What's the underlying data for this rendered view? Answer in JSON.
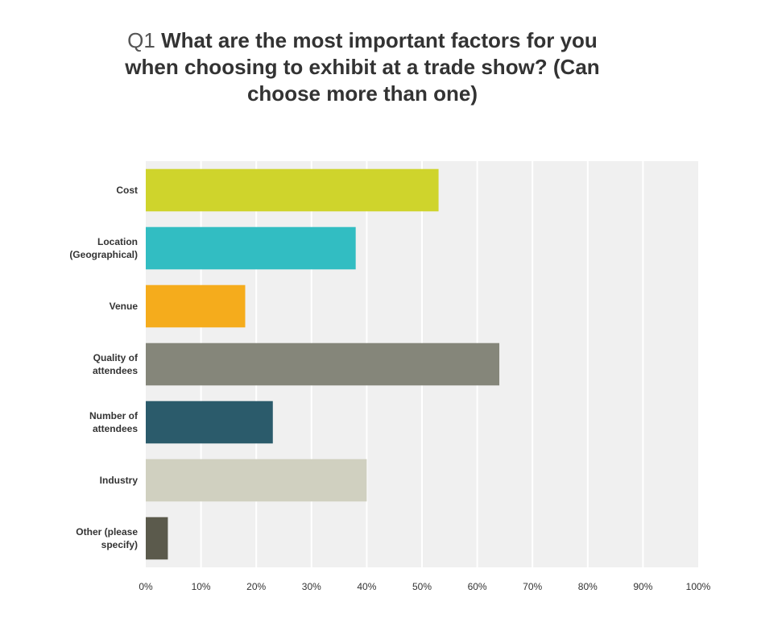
{
  "chart_data": {
    "type": "bar",
    "orientation": "horizontal",
    "title_prefix": "Q1",
    "title": "What are the most important factors for you when choosing to exhibit at a trade show? (Can choose more than one)",
    "categories": [
      [
        "Cost"
      ],
      [
        "Location",
        "(Geographical)"
      ],
      [
        "Venue"
      ],
      [
        "Quality of",
        "attendees"
      ],
      [
        "Number of",
        "attendees"
      ],
      [
        "Industry"
      ],
      [
        "Other (please",
        "specify)"
      ]
    ],
    "values": [
      53,
      38,
      18,
      64,
      23,
      40,
      4
    ],
    "colors": [
      "#cfd42c",
      "#32bdc2",
      "#f5ac1c",
      "#85867a",
      "#2b5b6b",
      "#d0d0c0",
      "#5b5a4c"
    ],
    "xlim": [
      0,
      100
    ],
    "x_ticks": [
      "0%",
      "10%",
      "20%",
      "30%",
      "40%",
      "50%",
      "60%",
      "70%",
      "80%",
      "90%",
      "100%"
    ],
    "grid": true,
    "background": "#f0f0f0",
    "gridline_color": "#ffffff"
  }
}
